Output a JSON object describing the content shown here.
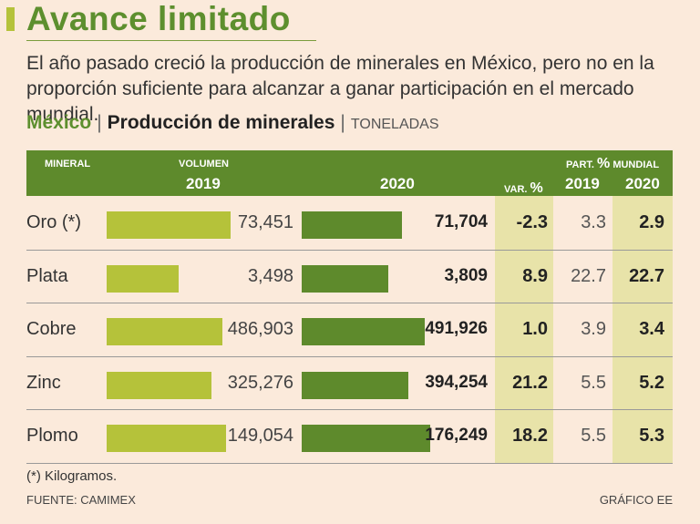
{
  "title": "Avance limitado",
  "subtitle": "El año pasado creció la producción de minerales en México, pero no en la proporción suficiente para alcanzar a ganar participación en el mercado mundial.",
  "heading": {
    "country": "México",
    "separator": "|",
    "subject": "Producción de minerales",
    "unit": "TONELADAS"
  },
  "colors": {
    "accent_light": "#b5c23a",
    "accent_dark": "#5e8a2c",
    "background": "#fbeadb",
    "shade": "#e8e3a9"
  },
  "chart_data": {
    "type": "table",
    "title": "Producción de minerales",
    "columns": {
      "mineral": "MINERAL",
      "volumen": "VOLUMEN",
      "year_2019": "2019",
      "year_2020": "2020",
      "var_label": "VAR.",
      "var_pct": "%",
      "part_label": "PART.",
      "part_pct": "%",
      "part_mundial": "MUNDIAL",
      "part_2019": "2019",
      "part_2020": "2020"
    },
    "rows": [
      {
        "mineral": "Oro (*)",
        "v2019": 73451,
        "v2019_label": "73,451",
        "v2020": 71704,
        "v2020_label": "71,704",
        "var": "-2.3",
        "part2019": "3.3",
        "part2020": "2.9"
      },
      {
        "mineral": "Plata",
        "v2019": 3498,
        "v2019_label": "3,498",
        "v2020": 3809,
        "v2020_label": "3,809",
        "var": "8.9",
        "part2019": "22.7",
        "part2020": "22.7"
      },
      {
        "mineral": "Cobre",
        "v2019": 486903,
        "v2019_label": "486,903",
        "v2020": 491926,
        "v2020_label": "491,926",
        "var": "1.0",
        "part2019": "3.9",
        "part2020": "3.4"
      },
      {
        "mineral": "Zinc",
        "v2019": 325276,
        "v2019_label": "325,276",
        "v2020": 394254,
        "v2020_label": "394,254",
        "var": "21.2",
        "part2019": "5.5",
        "part2020": "5.2"
      },
      {
        "mineral": "Plomo",
        "v2019": 149054,
        "v2019_label": "149,054",
        "v2020": 176249,
        "v2020_label": "176,249",
        "var": "18.2",
        "part2019": "5.5",
        "part2020": "5.3"
      }
    ],
    "bar_fraction_2019": [
      0.71,
      0.41,
      0.66,
      0.6,
      0.68
    ],
    "bar_fraction_2020": [
      0.73,
      0.63,
      0.9,
      0.78,
      0.94
    ]
  },
  "footnote": "(*) Kilogramos.",
  "source": "FUENTE: CAMIMEX",
  "credit": "GRÁFICO EE"
}
